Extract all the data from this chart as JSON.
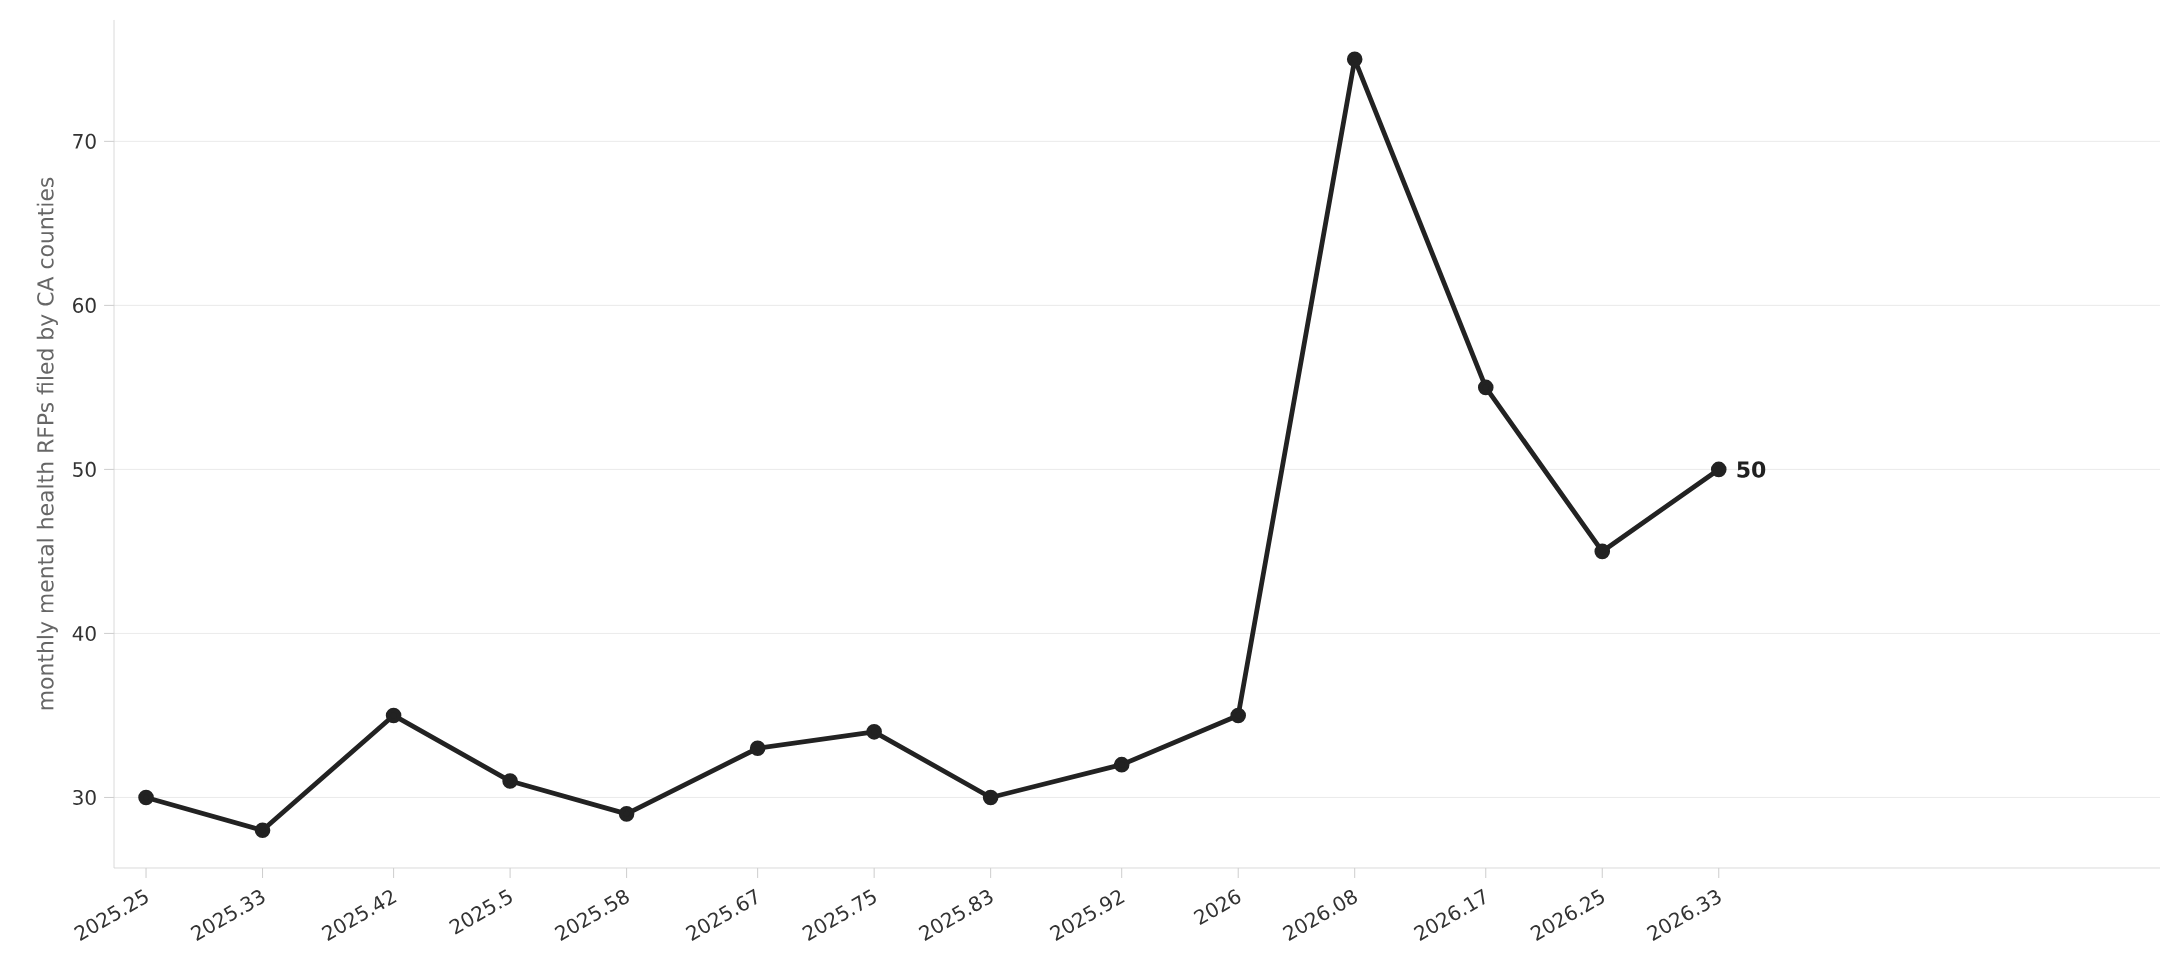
{
  "chart_data": {
    "type": "line",
    "ylabel": "monthly mental health RFPs filed by CA counties",
    "x": [
      2025.25,
      2025.33,
      2025.42,
      2025.5,
      2025.58,
      2025.67,
      2025.75,
      2025.83,
      2025.92,
      2026,
      2026.08,
      2026.17,
      2026.25,
      2026.33
    ],
    "series": [
      {
        "color": "#222222",
        "values": [
          30,
          28,
          35,
          31,
          29,
          33,
          34,
          30,
          32,
          35,
          75,
          55,
          45,
          50
        ]
      }
    ],
    "xlim": [
      2025.228,
      2026.633
    ],
    "ylim": [
      25.7,
      77.4
    ],
    "xticks": [
      2025.25,
      2025.33,
      2025.42,
      2025.5,
      2025.58,
      2025.67,
      2025.75,
      2025.83,
      2025.92,
      2026,
      2026.08,
      2026.17,
      2026.25,
      2026.33
    ],
    "yticks": [
      30,
      40,
      50,
      60,
      70
    ],
    "grid": "y",
    "marker": "circle",
    "line_style": "solid",
    "annotations": [
      {
        "text": "50",
        "x": 2026.33,
        "y": 50
      }
    ]
  }
}
